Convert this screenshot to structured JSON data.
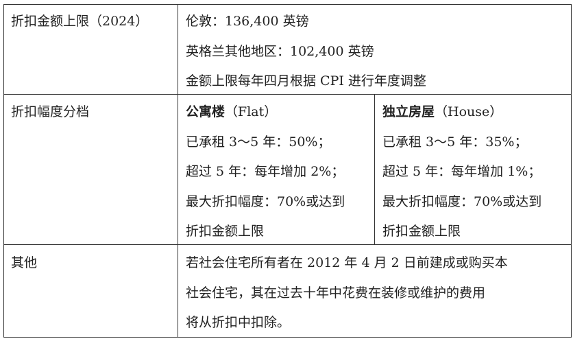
{
  "rows": [
    {
      "label": "折扣金额上限（2024）",
      "lines": [
        "伦敦：136,400 英镑",
        "英格兰其他地区：102,400 英镑",
        "金额上限每年四月根据 CPI 进行年度调整"
      ]
    },
    {
      "label": "折扣幅度分档",
      "flat": {
        "title_bold": "公寓楼",
        "title_rest": "（Flat）",
        "lines": [
          "已承租 3～5 年：50%；",
          "超过 5 年：每年增加 2%；",
          "最大折扣幅度：70%或达到",
          "折扣金额上限"
        ]
      },
      "house": {
        "title_bold": "独立房屋",
        "title_rest": "（House）",
        "lines": [
          "已承租 3～5 年：35%；",
          "超过 5 年：每年增加 1%；",
          "最大折扣幅度：70%或达到",
          "折扣金额上限"
        ]
      }
    },
    {
      "label": "其他",
      "lines": [
        "若社会住宅所有者在 2012 年 4 月 2 日前建成或购买本",
        "社会住宅，其在过去十年中花费在装修或维护的费用",
        "将从折扣中扣除。"
      ]
    }
  ]
}
